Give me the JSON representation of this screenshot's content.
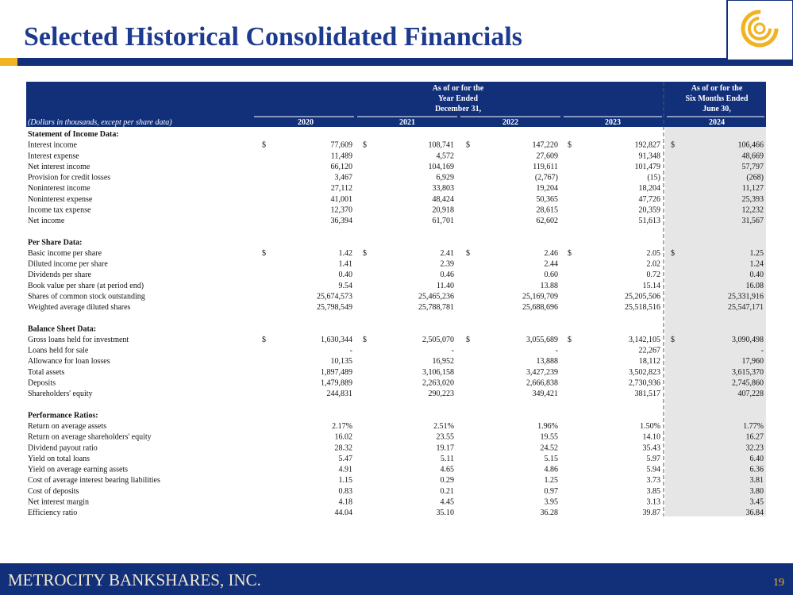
{
  "header": {
    "title": "Selected Historical Consolidated Financials"
  },
  "table": {
    "period_headers": [
      {
        "lines": [
          "As of or for the",
          "Year Ended",
          "December 31,"
        ]
      },
      {
        "lines": [
          "As of or for the",
          "Six Months Ended",
          "June 30,"
        ]
      }
    ],
    "units_note": "(Dollars in thousands, except per share data)",
    "columns": [
      "2020",
      "2021",
      "2022",
      "2023",
      "2024"
    ],
    "sections": [
      {
        "title": "Statement of Income Data:",
        "rows": [
          {
            "label": "Interest income",
            "currency": [
              "$",
              "$",
              "$",
              "$",
              "$"
            ],
            "values": [
              "77,609",
              "108,741",
              "147,220",
              "192,827",
              "106,466"
            ]
          },
          {
            "label": "Interest expense",
            "values": [
              "11,489",
              "4,572",
              "27,609",
              "91,348",
              "48,669"
            ]
          },
          {
            "label": "Net interest income",
            "values": [
              "66,120",
              "104,169",
              "119,611",
              "101,479",
              "57,797"
            ]
          },
          {
            "label": "Provision for credit losses",
            "values": [
              "3,467",
              "6,929",
              "(2,767)",
              "(15)",
              "(268)"
            ]
          },
          {
            "label": "Noninterest income",
            "values": [
              "27,112",
              "33,803",
              "19,204",
              "18,204",
              "11,127"
            ]
          },
          {
            "label": "Noninterest expense",
            "values": [
              "41,001",
              "48,424",
              "50,365",
              "47,726",
              "25,393"
            ]
          },
          {
            "label": "Income tax expense",
            "values": [
              "12,370",
              "20,918",
              "28,615",
              "20,359",
              "12,232"
            ]
          },
          {
            "label": "Net income",
            "values": [
              "36,394",
              "61,701",
              "62,602",
              "51,613",
              "31,567"
            ]
          }
        ]
      },
      {
        "title": "Per Share Data:",
        "rows": [
          {
            "label": "Basic income per share",
            "currency": [
              "$",
              "$",
              "$",
              "$",
              "$"
            ],
            "values": [
              "1.42",
              "2.41",
              "2.46",
              "2.05",
              "1.25"
            ]
          },
          {
            "label": "Diluted income per share",
            "values": [
              "1.41",
              "2.39",
              "2.44",
              "2.02",
              "1.24"
            ]
          },
          {
            "label": "Dividends per share",
            "values": [
              "0.40",
              "0.46",
              "0.60",
              "0.72",
              "0.40"
            ]
          },
          {
            "label": "Book value per share (at period end)",
            "values": [
              "9.54",
              "11.40",
              "13.88",
              "15.14",
              "16.08"
            ]
          },
          {
            "label": "Shares of common stock outstanding",
            "values": [
              "25,674,573",
              "25,465,236",
              "25,169,709",
              "25,205,506",
              "25,331,916"
            ]
          },
          {
            "label": "Weighted average diluted shares",
            "values": [
              "25,798,549",
              "25,788,781",
              "25,688,696",
              "25,518,516",
              "25,547,171"
            ]
          }
        ]
      },
      {
        "title": "Balance Sheet Data:",
        "rows": [
          {
            "label": "Gross loans held for investment",
            "currency": [
              "$",
              "$",
              "$",
              "$",
              "$"
            ],
            "values": [
              "1,630,344",
              "2,505,070",
              "3,055,689",
              "3,142,105",
              "3,090,498"
            ]
          },
          {
            "label": "Loans held for sale",
            "values": [
              "-",
              "-",
              "-",
              "22,267",
              "-"
            ]
          },
          {
            "label": "Allowance for loan losses",
            "values": [
              "10,135",
              "16,952",
              "13,888",
              "18,112",
              "17,960"
            ]
          },
          {
            "label": "Total assets",
            "values": [
              "1,897,489",
              "3,106,158",
              "3,427,239",
              "3,502,823",
              "3,615,370"
            ]
          },
          {
            "label": "Deposits",
            "values": [
              "1,479,889",
              "2,263,020",
              "2,666,838",
              "2,730,936",
              "2,745,860"
            ]
          },
          {
            "label": "Shareholders' equity",
            "values": [
              "244,831",
              "290,223",
              "349,421",
              "381,517",
              "407,228"
            ]
          }
        ]
      },
      {
        "title": "Performance Ratios:",
        "rows": [
          {
            "label": "Return on average assets",
            "values": [
              "2.17%",
              "2.51%",
              "1.96%",
              "1.50%",
              "1.77%"
            ]
          },
          {
            "label": "Return on average shareholders' equity",
            "values": [
              "16.02",
              "23.55",
              "19.55",
              "14.10",
              "16.27"
            ]
          },
          {
            "label": "Dividend payout ratio",
            "values": [
              "28.32",
              "19.17",
              "24.52",
              "35.43",
              "32.23"
            ]
          },
          {
            "label": "Yield on total loans",
            "values": [
              "5.47",
              "5.11",
              "5.15",
              "5.97",
              "6.40"
            ]
          },
          {
            "label": "Yield on average earning assets",
            "values": [
              "4.91",
              "4.65",
              "4.86",
              "5.94",
              "6.36"
            ]
          },
          {
            "label": "Cost of average interest bearing liabilities",
            "values": [
              "1.15",
              "0.29",
              "1.25",
              "3.73",
              "3.81"
            ]
          },
          {
            "label": "Cost of deposits",
            "values": [
              "0.83",
              "0.21",
              "0.97",
              "3.85",
              "3.80"
            ]
          },
          {
            "label": "Net interest margin",
            "values": [
              "4.18",
              "4.45",
              "3.95",
              "3.13",
              "3.45"
            ]
          },
          {
            "label": "Efficiency ratio",
            "values": [
              "44.04",
              "35.10",
              "36.28",
              "39.87",
              "36.84"
            ]
          }
        ]
      }
    ]
  },
  "footer": {
    "company": "METROCITY BANKSHARES, INC.",
    "page": "19"
  }
}
